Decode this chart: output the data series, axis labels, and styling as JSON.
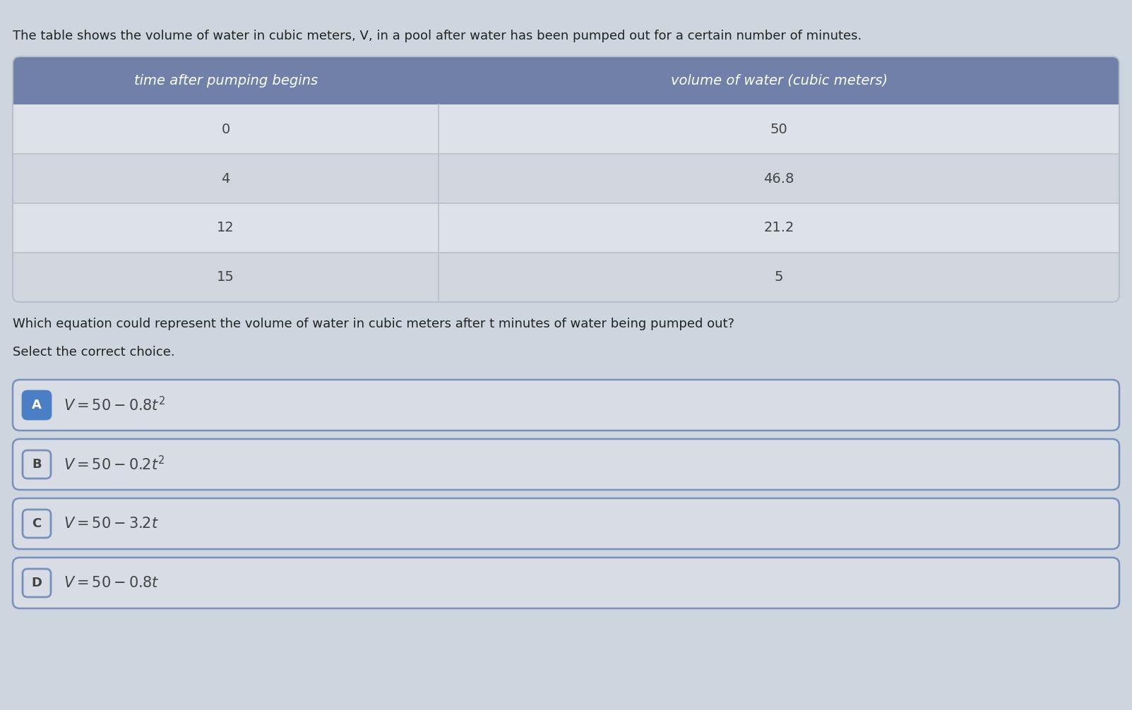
{
  "intro_text": "The table shows the volume of water in cubic meters, V, in a pool after water has been pumped out for a certain number of minutes.",
  "table_header": [
    "time after pumping begins",
    "volume of water (cubic meters)"
  ],
  "table_rows": [
    [
      "0",
      "50"
    ],
    [
      "4",
      "46.8"
    ],
    [
      "12",
      "21.2"
    ],
    [
      "15",
      "5"
    ]
  ],
  "question_text": "Which equation could represent the volume of water in cubic meters after t minutes of water being pumped out?",
  "select_text": "Select the correct choice.",
  "choices": [
    {
      "label": "A",
      "selected": true
    },
    {
      "label": "B",
      "selected": false
    },
    {
      "label": "C",
      "selected": false
    },
    {
      "label": "D",
      "selected": false
    }
  ],
  "eq_strings": [
    "$V = 50 - 0.8t^2$",
    "$V = 50 - 0.2t^2$",
    "$V = 50 - 3.2t$",
    "$V = 50 - 0.8t$"
  ],
  "bg_color": "#cdd5de",
  "header_bg_color": "#7080a8",
  "header_text_color": "#ffffff",
  "row_bg_light": "#dde1e8",
  "row_bg_dark": "#d0d5de",
  "table_line_color": "#b8bfcc",
  "choice_bg_color": "#d8dce5",
  "choice_border_color": "#7890bb",
  "choice_selected_label_bg": "#4a7ec5",
  "choice_unsel_label_bg": "#d8dce5",
  "choice_label_border_sel": "#4a7ec5",
  "choice_label_border_unsel": "#7890bb",
  "choice_text_color": "#444444",
  "intro_text_color": "#222222",
  "question_text_color": "#222222"
}
